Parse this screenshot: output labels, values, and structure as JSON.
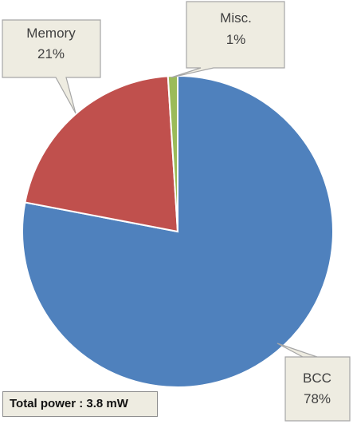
{
  "chart_data": {
    "type": "pie",
    "slices": [
      {
        "label": "BCC",
        "value": 78,
        "value_label": "78%",
        "color": "#4f81bd"
      },
      {
        "label": "Memory",
        "value": 21,
        "value_label": "21%",
        "color": "#c0504d"
      },
      {
        "label": "Misc.",
        "value": 1,
        "value_label": "1%",
        "color": "#9bbb59"
      }
    ]
  },
  "footer": {
    "total_power": "Total power : 3.8 mW"
  }
}
